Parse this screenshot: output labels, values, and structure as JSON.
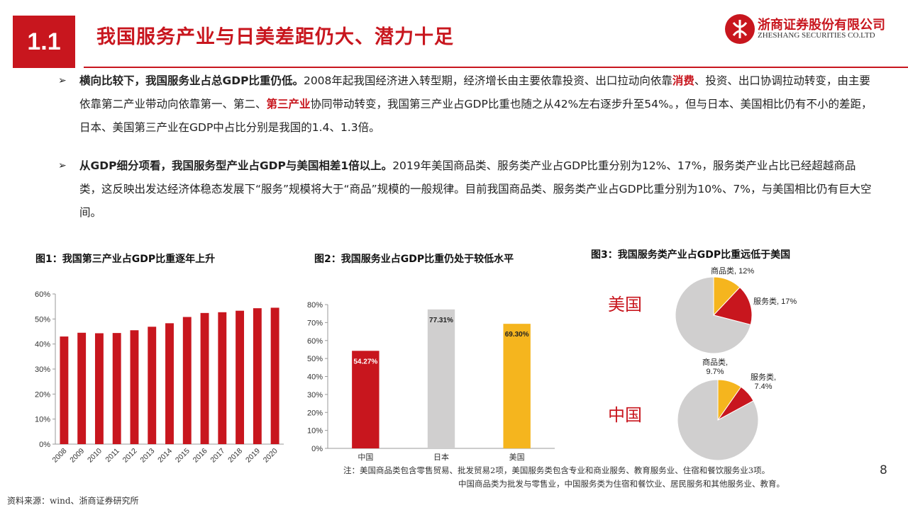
{
  "header": {
    "section_number": "1.1",
    "title": "我国服务产业与日美差距仍大、潜力十足",
    "logo_cn": "浙商证券股份有限公司",
    "logo_en": "ZHESHANG SECURITIES CO.LTD",
    "logo_icon": "zheshang-logo-icon"
  },
  "bullets": [
    {
      "marker": "➢",
      "lead": "横向比较下，我国服务业占总GDP比重仍低。",
      "text_1": "2008年起我国经济进入转型期，经济增长由主要依靠投资、出口拉动向依靠",
      "highlight_1": "消费",
      "text_2": "、投资、出口协调拉动转变，由主要依靠第二产业带动向依靠第一、第二、",
      "highlight_2": "第三产业",
      "text_3": "协同带动转变，我国第三产业占GDP比重也随之从42%左右逐步升至54%。，但与日本、美国相比仍有不小的差距，日本、美国第三产业在GDP中占比分别是我国的1.4、1.3倍。"
    },
    {
      "marker": "➢",
      "lead": "从GDP细分项看，我国服务型产业占GDP与美国相差1倍以上。",
      "text_1": "2019年美国商品类、服务类产业占GDP比重分别为12%、17%，服务类产业占比已经超越商品类，这反映出发达经济体稳态发展下“服务”规模将大于“商品”规模的一般规律。目前我国商品类、服务类产业占GDP比重分别为10%、7%，与美国相比仍有巨大空间。"
    }
  ],
  "figures": {
    "fig1_title": "图1：我国第三产业占GDP比重逐年上升",
    "fig2_title": "图2：我国服务业占GDP比重仍处于较低水平",
    "fig3_title": "图3：我国服务类产业占GDP比重远低于美国",
    "fig3_us_label": "美国",
    "fig3_cn_label": "中国"
  },
  "chart_data": [
    {
      "type": "bar",
      "title": "图1：我国第三产业占GDP比重逐年上升",
      "categories": [
        "2008",
        "2009",
        "2010",
        "2011",
        "2012",
        "2013",
        "2014",
        "2015",
        "2016",
        "2017",
        "2018",
        "2019",
        "2020"
      ],
      "values": [
        43.0,
        44.5,
        44.3,
        44.4,
        45.5,
        46.9,
        48.3,
        50.8,
        52.4,
        52.7,
        53.3,
        54.3,
        54.5
      ],
      "ylim": [
        0,
        60
      ],
      "yticks": [
        "0%",
        "10%",
        "20%",
        "30%",
        "40%",
        "50%",
        "60%"
      ],
      "color": "#c8161e",
      "grid": false
    },
    {
      "type": "bar",
      "title": "图2：我国服务业占GDP比重仍处于较低水平",
      "categories": [
        "中国",
        "日本",
        "美国"
      ],
      "values": [
        54.27,
        77.31,
        69.3
      ],
      "data_labels": [
        "54.27%",
        "77.31%",
        "69.30%"
      ],
      "colors": [
        "#c8161e",
        "#d0cfcf",
        "#f5b51e"
      ],
      "ylim": [
        0,
        80
      ],
      "yticks": [
        "0%",
        "10%",
        "20%",
        "30%",
        "40%",
        "50%",
        "60%",
        "70%",
        "80%"
      ],
      "grid": false
    },
    {
      "type": "pie",
      "title": "美国",
      "slices": [
        {
          "label": "商品类, 12%",
          "value": 12,
          "color": "#f5b51e"
        },
        {
          "label": "服务类, 17%",
          "value": 17,
          "color": "#c8161e"
        },
        {
          "label": "",
          "value": 71,
          "color": "#d0cfcf"
        }
      ]
    },
    {
      "type": "pie",
      "title": "中国",
      "slices": [
        {
          "label": "商品类, 9.7%",
          "label_line1": "商品类,",
          "label_line2": "9.7%",
          "value": 9.7,
          "color": "#f5b51e"
        },
        {
          "label": "服务类, 7.4%",
          "label_line1": "服务类,",
          "label_line2": "7.4%",
          "value": 7.4,
          "color": "#c8161e"
        },
        {
          "label": "",
          "value": 82.9,
          "color": "#d0cfcf"
        }
      ]
    }
  ],
  "notes": {
    "line1": "注：美国商品类包含零售贸易、批发贸易2项，美国服务类包含专业和商业服务、教育服务业、住宿和餐饮服务业3项。",
    "line2": "中国商品类为批发与零售业，中国服务类为住宿和餐饮业、居民服务和其他服务业、教育。"
  },
  "footer": {
    "source": "资料来源：wind、浙商证券研究所",
    "page_number": "8"
  }
}
